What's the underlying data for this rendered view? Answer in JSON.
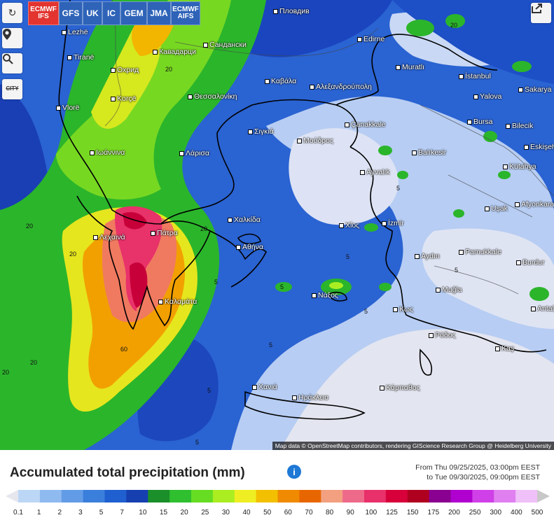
{
  "model_tabs": [
    {
      "label": "ECMWF IFS",
      "active": true
    },
    {
      "label": "GFS"
    },
    {
      "label": "UK"
    },
    {
      "label": "IC"
    },
    {
      "label": "GEM"
    },
    {
      "label": "JMA"
    },
    {
      "label": "ECMWF AIFS"
    }
  ],
  "tools": {
    "refresh": "refresh-icon",
    "locate": "location-pin-icon",
    "zoom": "zoom-icon",
    "city": "CITY"
  },
  "share_icon": "share-icon",
  "places": [
    "Пловдив",
    "Lezhë",
    "Кавадарци",
    "Сандански",
    "Tiranë",
    "Охрид",
    "Korçë",
    "Vlorë",
    "Θεσσαλονίκη",
    "Καβάλα",
    "Αλεξανδρούπολη",
    "Edirne",
    "Muratlı",
    "İstanbul",
    "Yalova",
    "Sakarya",
    "Bursa",
    "Bilecik",
    "Eskişehir",
    "Çanakkale",
    "Balıkesir",
    "Ιωάννινα",
    "Λάρισα",
    "Σιγκιά",
    "Μούδρος",
    "Ayvalık",
    "Kütahya",
    "Uşak",
    "Afyonkarahisar",
    "Χαλκίδα",
    "Χίος",
    "İzmir",
    "Λεχαινά",
    "Πάτρα",
    "Αθήνα",
    "Aydın",
    "Pamukkale",
    "Burdur",
    "Muğla",
    "Νάξος",
    "Κως",
    "Ρόδος",
    "Antalya",
    "Καλαμάτα",
    "Kaş",
    "Χανιά",
    "Ηράκλειο",
    "Κάρπαθος"
  ],
  "contour_values": [
    "20",
    "20",
    "20",
    "20",
    "20",
    "5",
    "5",
    "5",
    "5",
    "5",
    "5",
    "60",
    "20",
    "20",
    "5",
    "5",
    "5"
  ],
  "attribution": "Map data © OpenStreetMap contributors, rendering GIScience Research Group @ Heidelberg University",
  "title": "Accumulated total precipitation (mm)",
  "info_icon": "info-icon",
  "period": {
    "from": "From Thu 09/25/2025, 03:00pm EEST",
    "to": "to Tue 09/30/2025, 09:00pm EEST"
  },
  "legend": {
    "values": [
      "0.1",
      "1",
      "2",
      "3",
      "5",
      "7",
      "10",
      "15",
      "20",
      "25",
      "30",
      "40",
      "50",
      "60",
      "70",
      "80",
      "90",
      "100",
      "125",
      "150",
      "175",
      "200",
      "250",
      "300",
      "400",
      "500"
    ],
    "colors": [
      "#e6e6ef",
      "#bcd7f5",
      "#8fbaf0",
      "#639ce6",
      "#3b7fdc",
      "#1f5fd0",
      "#163fb0",
      "#1a8f2a",
      "#2fbf2f",
      "#66dd22",
      "#aaee22",
      "#eeee22",
      "#f2c000",
      "#f08a00",
      "#e86600",
      "#f2a080",
      "#ee6a8a",
      "#e8306a",
      "#d8003a",
      "#b00020",
      "#8a0090",
      "#b000d0",
      "#d040e8",
      "#e080f0",
      "#f0c0f8",
      "#c8c8c8"
    ]
  }
}
